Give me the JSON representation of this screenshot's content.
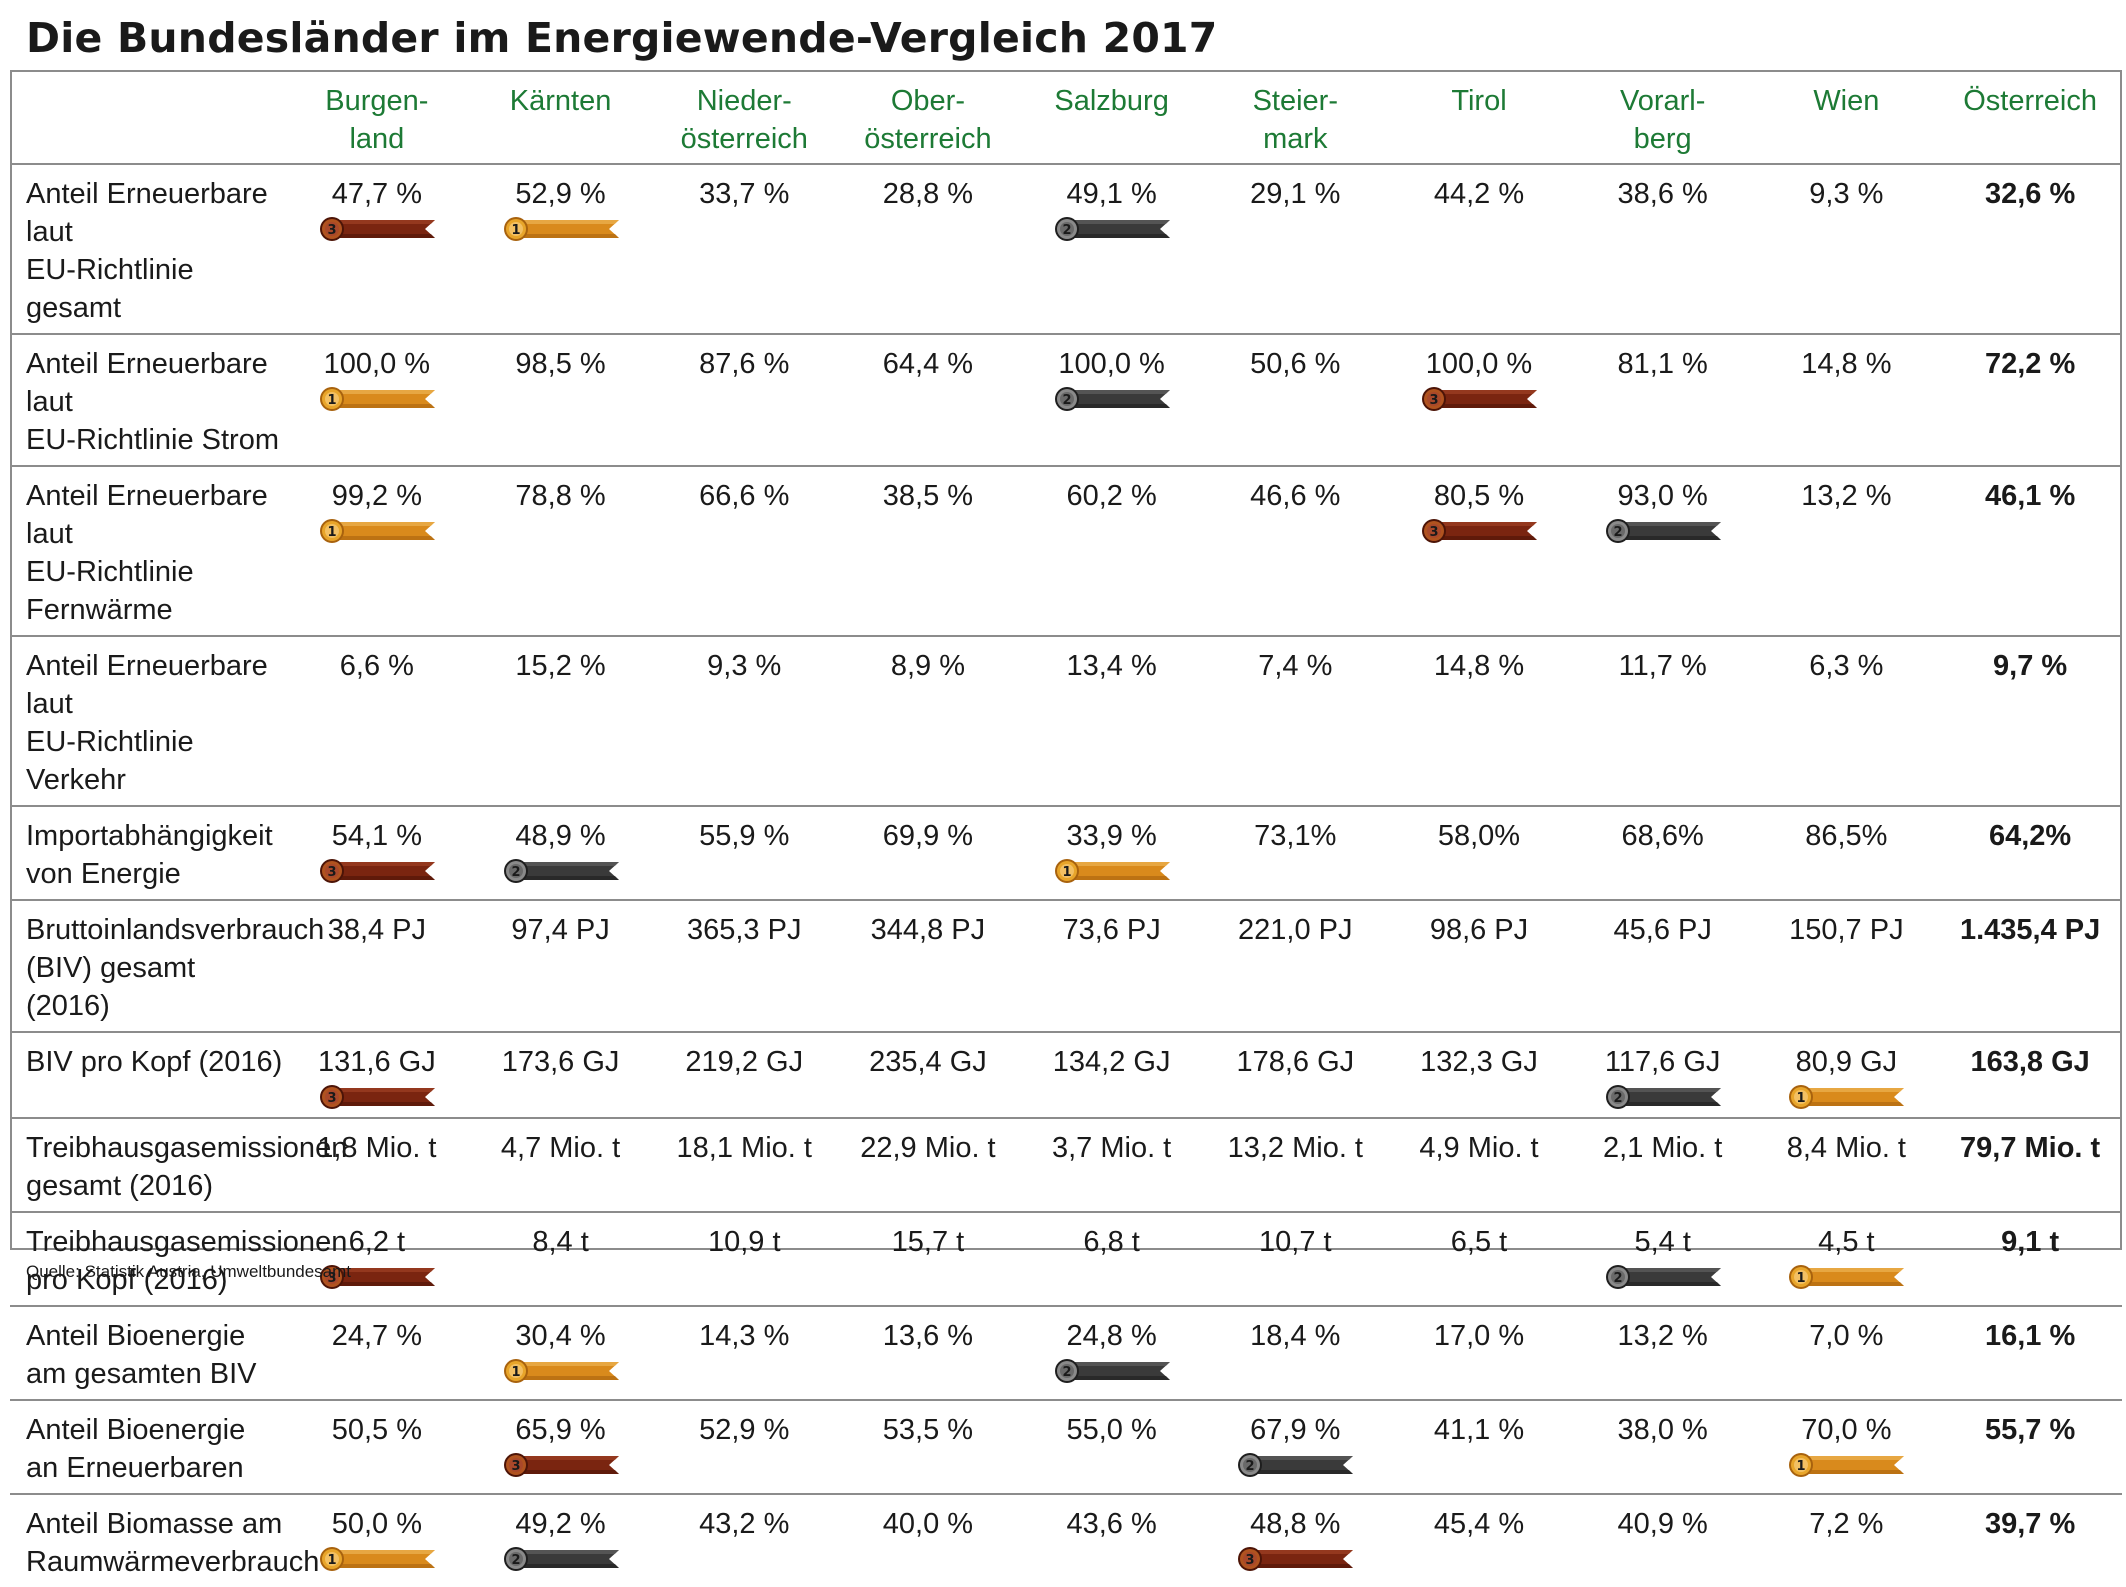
{
  "title": "Die Bundesländer im Energiewende-Vergleich 2017",
  "source": "Quelle: Statistik Austria, Umweltbundesamt",
  "colors": {
    "header_green": "#1d7a35",
    "gold": "#d98a1c",
    "silver": "#3a3a3a",
    "bronze": "#7a2510",
    "grid": "#8c8c8c"
  },
  "columns": [
    {
      "line1": "Burgen-",
      "line2": "land"
    },
    {
      "line1": "Kärnten",
      "line2": ""
    },
    {
      "line1": "Nieder-",
      "line2": "österreich"
    },
    {
      "line1": "Ober-",
      "line2": "österreich"
    },
    {
      "line1": "Salzburg",
      "line2": ""
    },
    {
      "line1": "Steier-",
      "line2": "mark"
    },
    {
      "line1": "Tirol",
      "line2": ""
    },
    {
      "line1": "Vorarl-",
      "line2": "berg"
    },
    {
      "line1": "Wien",
      "line2": ""
    },
    {
      "line1": "Österreich",
      "line2": ""
    }
  ],
  "rows": [
    {
      "label": [
        "Anteil Erneuerbare laut",
        "EU-Richtlinie gesamt"
      ],
      "cells": [
        {
          "value": "47,7 %",
          "rank": "3"
        },
        {
          "value": "52,9 %",
          "rank": "1"
        },
        {
          "value": "33,7 %",
          "rank": ""
        },
        {
          "value": "28,8 %",
          "rank": ""
        },
        {
          "value": "49,1 %",
          "rank": "2"
        },
        {
          "value": "29,1 %",
          "rank": ""
        },
        {
          "value": "44,2 %",
          "rank": ""
        },
        {
          "value": "38,6 %",
          "rank": ""
        },
        {
          "value": "9,3 %",
          "rank": ""
        },
        {
          "value": "32,6 %",
          "rank": ""
        }
      ]
    },
    {
      "label": [
        "Anteil Erneuerbare laut",
        "EU-Richtlinie Strom"
      ],
      "cells": [
        {
          "value": "100,0 %",
          "rank": "1"
        },
        {
          "value": "98,5 %",
          "rank": ""
        },
        {
          "value": "87,6 %",
          "rank": ""
        },
        {
          "value": "64,4 %",
          "rank": ""
        },
        {
          "value": "100,0 %",
          "rank": "2"
        },
        {
          "value": "50,6 %",
          "rank": ""
        },
        {
          "value": "100,0 %",
          "rank": "3"
        },
        {
          "value": "81,1 %",
          "rank": ""
        },
        {
          "value": "14,8 %",
          "rank": ""
        },
        {
          "value": "72,2 %",
          "rank": ""
        }
      ]
    },
    {
      "label": [
        "Anteil Erneuerbare laut",
        "EU-Richtlinie",
        "Fernwärme"
      ],
      "cells": [
        {
          "value": "99,2 %",
          "rank": "1"
        },
        {
          "value": "78,8 %",
          "rank": ""
        },
        {
          "value": "66,6 %",
          "rank": ""
        },
        {
          "value": "38,5 %",
          "rank": ""
        },
        {
          "value": "60,2 %",
          "rank": ""
        },
        {
          "value": "46,6 %",
          "rank": ""
        },
        {
          "value": "80,5 %",
          "rank": "3"
        },
        {
          "value": "93,0 %",
          "rank": "2"
        },
        {
          "value": "13,2 %",
          "rank": ""
        },
        {
          "value": "46,1 %",
          "rank": ""
        }
      ]
    },
    {
      "label": [
        "Anteil Erneuerbare laut",
        "EU-Richtlinie Verkehr"
      ],
      "cells": [
        {
          "value": "6,6 %",
          "rank": ""
        },
        {
          "value": "15,2 %",
          "rank": ""
        },
        {
          "value": "9,3 %",
          "rank": ""
        },
        {
          "value": "8,9 %",
          "rank": ""
        },
        {
          "value": "13,4 %",
          "rank": ""
        },
        {
          "value": "7,4 %",
          "rank": ""
        },
        {
          "value": "14,8 %",
          "rank": ""
        },
        {
          "value": "11,7 %",
          "rank": ""
        },
        {
          "value": "6,3 %",
          "rank": ""
        },
        {
          "value": "9,7 %",
          "rank": ""
        }
      ]
    },
    {
      "label": [
        "Importabhängigkeit",
        "von Energie"
      ],
      "cells": [
        {
          "value": "54,1 %",
          "rank": "3"
        },
        {
          "value": "48,9 %",
          "rank": "2"
        },
        {
          "value": "55,9 %",
          "rank": ""
        },
        {
          "value": "69,9 %",
          "rank": ""
        },
        {
          "value": "33,9 %",
          "rank": "1"
        },
        {
          "value": "73,1%",
          "rank": ""
        },
        {
          "value": "58,0%",
          "rank": ""
        },
        {
          "value": "68,6%",
          "rank": ""
        },
        {
          "value": "86,5%",
          "rank": ""
        },
        {
          "value": "64,2%",
          "rank": ""
        }
      ]
    },
    {
      "label": [
        "Bruttoinlandsverbrauch",
        "(BIV) gesamt (2016)"
      ],
      "cells": [
        {
          "value": "38,4 PJ",
          "rank": ""
        },
        {
          "value": "97,4 PJ",
          "rank": ""
        },
        {
          "value": "365,3 PJ",
          "rank": ""
        },
        {
          "value": "344,8 PJ",
          "rank": ""
        },
        {
          "value": "73,6 PJ",
          "rank": ""
        },
        {
          "value": "221,0 PJ",
          "rank": ""
        },
        {
          "value": "98,6 PJ",
          "rank": ""
        },
        {
          "value": "45,6 PJ",
          "rank": ""
        },
        {
          "value": "150,7 PJ",
          "rank": ""
        },
        {
          "value": "1.435,4 PJ",
          "rank": ""
        }
      ]
    },
    {
      "label": [
        "BIV pro Kopf (2016)"
      ],
      "cells": [
        {
          "value": "131,6 GJ",
          "rank": "3"
        },
        {
          "value": "173,6 GJ",
          "rank": ""
        },
        {
          "value": "219,2 GJ",
          "rank": ""
        },
        {
          "value": "235,4 GJ",
          "rank": ""
        },
        {
          "value": "134,2 GJ",
          "rank": ""
        },
        {
          "value": "178,6 GJ",
          "rank": ""
        },
        {
          "value": "132,3 GJ",
          "rank": ""
        },
        {
          "value": "117,6 GJ",
          "rank": "2"
        },
        {
          "value": "80,9 GJ",
          "rank": "1"
        },
        {
          "value": "163,8 GJ",
          "rank": ""
        }
      ]
    },
    {
      "label": [
        "Treibhausgasemissionen",
        "gesamt (2016)"
      ],
      "cells": [
        {
          "value": "1,8 Mio. t",
          "rank": ""
        },
        {
          "value": "4,7 Mio. t",
          "rank": ""
        },
        {
          "value": "18,1 Mio. t",
          "rank": ""
        },
        {
          "value": "22,9 Mio. t",
          "rank": ""
        },
        {
          "value": "3,7 Mio. t",
          "rank": ""
        },
        {
          "value": "13,2 Mio. t",
          "rank": ""
        },
        {
          "value": "4,9 Mio. t",
          "rank": ""
        },
        {
          "value": "2,1 Mio. t",
          "rank": ""
        },
        {
          "value": "8,4 Mio. t",
          "rank": ""
        },
        {
          "value": "79,7 Mio. t",
          "rank": ""
        }
      ]
    },
    {
      "label": [
        "Treibhausgasemissionen",
        "pro Kopf (2016)"
      ],
      "cells": [
        {
          "value": "6,2 t",
          "rank": "3"
        },
        {
          "value": "8,4 t",
          "rank": ""
        },
        {
          "value": "10,9 t",
          "rank": ""
        },
        {
          "value": "15,7 t",
          "rank": ""
        },
        {
          "value": "6,8 t",
          "rank": ""
        },
        {
          "value": "10,7 t",
          "rank": ""
        },
        {
          "value": "6,5 t",
          "rank": ""
        },
        {
          "value": "5,4 t",
          "rank": "2"
        },
        {
          "value": "4,5 t",
          "rank": "1"
        },
        {
          "value": "9,1 t",
          "rank": ""
        }
      ]
    },
    {
      "label": [
        "Anteil Bioenergie",
        "am gesamten BIV"
      ],
      "cells": [
        {
          "value": "24,7 %",
          "rank": ""
        },
        {
          "value": "30,4 %",
          "rank": "1"
        },
        {
          "value": "14,3 %",
          "rank": ""
        },
        {
          "value": "13,6 %",
          "rank": ""
        },
        {
          "value": "24,8 %",
          "rank": "2"
        },
        {
          "value": "18,4 %",
          "rank": ""
        },
        {
          "value": "17,0 %",
          "rank": ""
        },
        {
          "value": "13,2 %",
          "rank": ""
        },
        {
          "value": "7,0 %",
          "rank": ""
        },
        {
          "value": "16,1 %",
          "rank": ""
        }
      ]
    },
    {
      "label": [
        "Anteil Bioenergie",
        "an Erneuerbaren"
      ],
      "cells": [
        {
          "value": "50,5 %",
          "rank": ""
        },
        {
          "value": "65,9 %",
          "rank": "3"
        },
        {
          "value": "52,9 %",
          "rank": ""
        },
        {
          "value": "53,5 %",
          "rank": ""
        },
        {
          "value": "55,0 %",
          "rank": ""
        },
        {
          "value": "67,9 %",
          "rank": "2"
        },
        {
          "value": "41,1 %",
          "rank": ""
        },
        {
          "value": "38,0 %",
          "rank": ""
        },
        {
          "value": "70,0 %",
          "rank": "1"
        },
        {
          "value": "55,7 %",
          "rank": ""
        }
      ]
    },
    {
      "label": [
        "Anteil Biomasse am",
        "Raumwärmeverbrauch"
      ],
      "cells": [
        {
          "value": "50,0 %",
          "rank": "1"
        },
        {
          "value": "49,2 %",
          "rank": "2"
        },
        {
          "value": "43,2 %",
          "rank": ""
        },
        {
          "value": "40,0 %",
          "rank": ""
        },
        {
          "value": "43,6 %",
          "rank": ""
        },
        {
          "value": "48,8 %",
          "rank": "3"
        },
        {
          "value": "45,4 %",
          "rank": ""
        },
        {
          "value": "40,9 %",
          "rank": ""
        },
        {
          "value": "7,2 %",
          "rank": ""
        },
        {
          "value": "39,7 %",
          "rank": ""
        }
      ]
    }
  ]
}
